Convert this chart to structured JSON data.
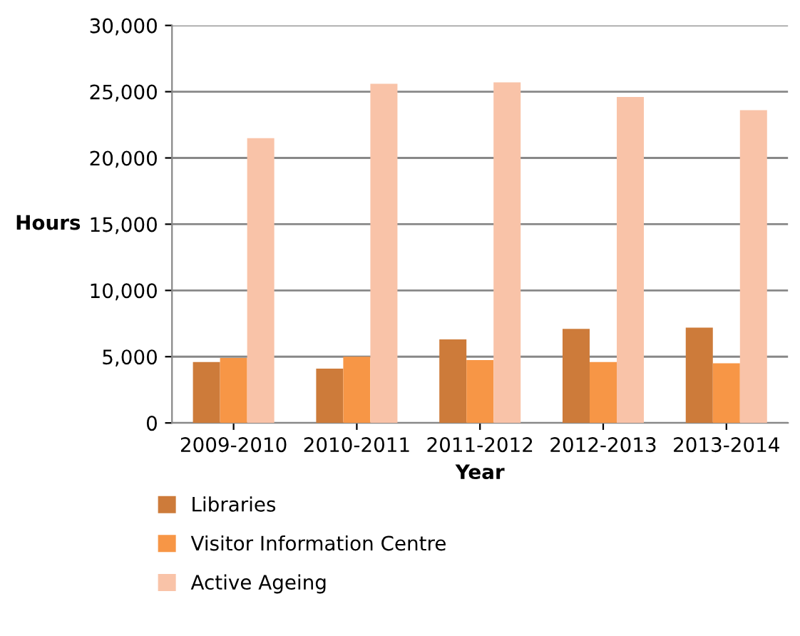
{
  "chart_data": {
    "type": "bar",
    "xlabel": "Year",
    "ylabel": "Hours",
    "categories": [
      "2009-2010",
      "2010-2011",
      "2011-2012",
      "2012-2013",
      "2013-2014"
    ],
    "series": [
      {
        "name": "Libraries",
        "color": "#cd7b3a",
        "values": [
          4600,
          4100,
          6300,
          7100,
          7200
        ]
      },
      {
        "name": "Visitor Information Centre",
        "color": "#f79646",
        "values": [
          4900,
          5000,
          4750,
          4600,
          4500
        ]
      },
      {
        "name": "Active Ageing",
        "color": "#f9c3a8",
        "values": [
          21500,
          25600,
          25700,
          24600,
          23600
        ]
      }
    ],
    "ylim": [
      0,
      30000
    ],
    "yticks": [
      {
        "value": 0,
        "label": "0"
      },
      {
        "value": 5000,
        "label": "5,000"
      },
      {
        "value": 10000,
        "label": "10,000"
      },
      {
        "value": 15000,
        "label": "15,000"
      },
      {
        "value": 20000,
        "label": "20,000"
      },
      {
        "value": 25000,
        "label": "25,000"
      },
      {
        "value": 30000,
        "label": "30,000"
      }
    ],
    "grid": "y",
    "legend": "bottom"
  }
}
